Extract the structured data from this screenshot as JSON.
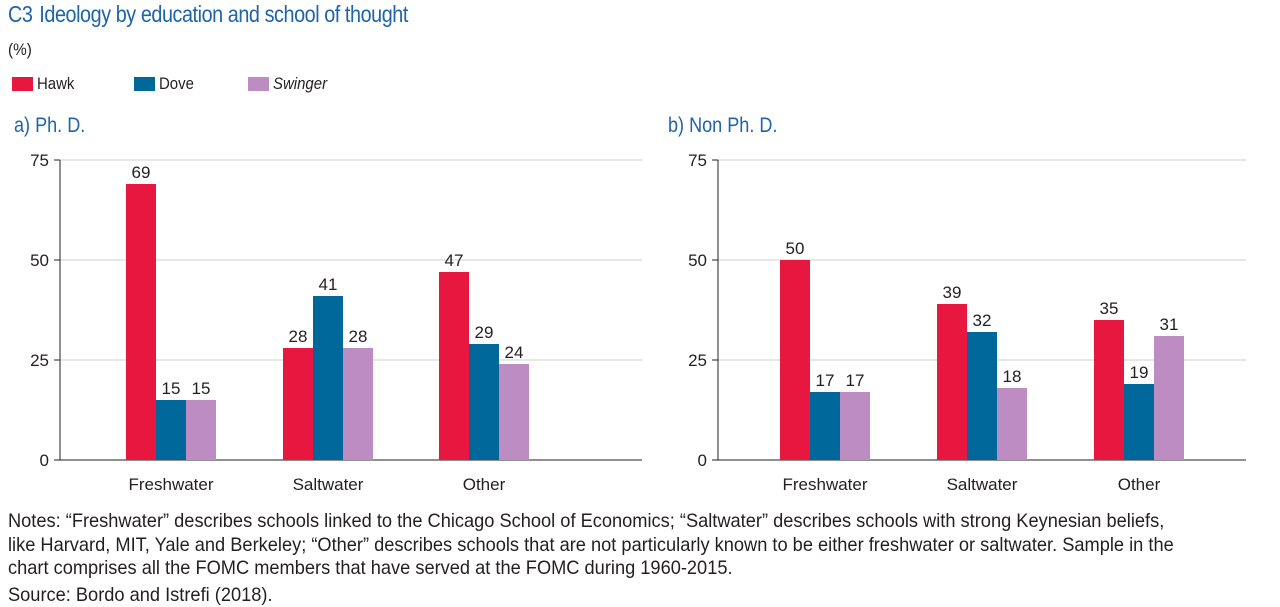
{
  "header": {
    "number": "C3",
    "title": "Ideology by education and school of thought",
    "unit": "(%)"
  },
  "legend": [
    {
      "label": "Hawk",
      "color": "#e8173f"
    },
    {
      "label": "Dove",
      "color": "#00679b"
    },
    {
      "label": "Swinger",
      "color": "#bd8cc2"
    }
  ],
  "chart_data": [
    {
      "type": "bar",
      "title": "a) Ph. D.",
      "categories": [
        "Freshwater",
        "Saltwater",
        "Other"
      ],
      "series": [
        {
          "name": "Hawk",
          "values": [
            69,
            28,
            47
          ]
        },
        {
          "name": "Dove",
          "values": [
            15,
            41,
            29
          ]
        },
        {
          "name": "Swinger",
          "values": [
            15,
            28,
            24
          ]
        }
      ],
      "ylim": [
        0,
        75
      ],
      "yticks": [
        0,
        25,
        50,
        75
      ],
      "grid": true,
      "legend": "top-left"
    },
    {
      "type": "bar",
      "title": "b) Non Ph. D.",
      "categories": [
        "Freshwater",
        "Saltwater",
        "Other"
      ],
      "series": [
        {
          "name": "Hawk",
          "values": [
            50,
            39,
            35
          ]
        },
        {
          "name": "Dove",
          "values": [
            17,
            32,
            19
          ]
        },
        {
          "name": "Swinger",
          "values": [
            17,
            18,
            31
          ]
        }
      ],
      "ylim": [
        0,
        75
      ],
      "yticks": [
        0,
        25,
        50,
        75
      ],
      "grid": true,
      "legend": "top-left"
    }
  ],
  "notes": "Notes: “Freshwater” describes schools linked to the Chicago School of Economics; “Saltwater” describes schools with strong Keynesian beliefs, like Harvard, MIT, Yale and Berkeley; “Other” describes schools that are not particularly known to be either freshwater or saltwater. Sample in the chart comprises all the FOMC members that have served at the FOMC during 1960-2015.",
  "source": "Source: Bordo and Istrefi (2018)."
}
